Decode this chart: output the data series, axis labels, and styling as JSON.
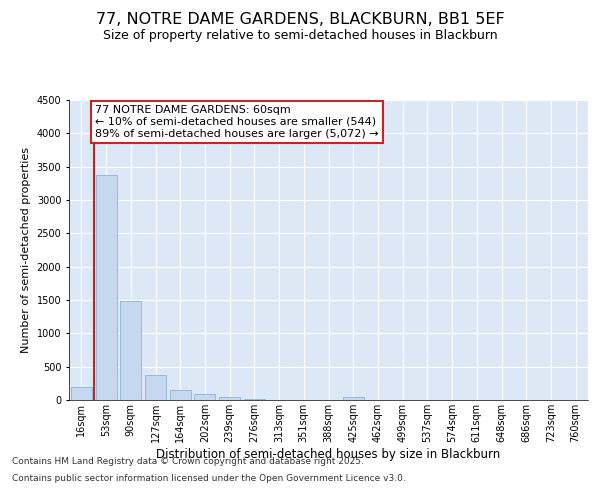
{
  "title_line1": "77, NOTRE DAME GARDENS, BLACKBURN, BB1 5EF",
  "title_line2": "Size of property relative to semi-detached houses in Blackburn",
  "xlabel": "Distribution of semi-detached houses by size in Blackburn",
  "ylabel": "Number of semi-detached properties",
  "categories": [
    "16sqm",
    "53sqm",
    "90sqm",
    "127sqm",
    "164sqm",
    "202sqm",
    "239sqm",
    "276sqm",
    "313sqm",
    "351sqm",
    "388sqm",
    "425sqm",
    "462sqm",
    "499sqm",
    "537sqm",
    "574sqm",
    "611sqm",
    "648sqm",
    "686sqm",
    "723sqm",
    "760sqm"
  ],
  "values": [
    200,
    3380,
    1490,
    375,
    155,
    90,
    50,
    10,
    3,
    0,
    0,
    50,
    0,
    0,
    0,
    0,
    0,
    0,
    0,
    0,
    0
  ],
  "bar_color": "#c5d8f0",
  "bar_edge_color": "#8ab4d8",
  "vline_color": "#cc2222",
  "vline_x": 0.5,
  "annotation_text": "77 NOTRE DAME GARDENS: 60sqm\n← 10% of semi-detached houses are smaller (544)\n89% of semi-detached houses are larger (5,072) →",
  "annotation_box_edgecolor": "#cc2222",
  "ylim": [
    0,
    4500
  ],
  "yticks": [
    0,
    500,
    1000,
    1500,
    2000,
    2500,
    3000,
    3500,
    4000,
    4500
  ],
  "grid_color": "#ffffff",
  "bg_color": "#dce8f5",
  "footer_line1": "Contains HM Land Registry data © Crown copyright and database right 2025.",
  "footer_line2": "Contains public sector information licensed under the Open Government Licence v3.0.",
  "title_fontsize": 11.5,
  "subtitle_fontsize": 9,
  "xlabel_fontsize": 8.5,
  "ylabel_fontsize": 8,
  "tick_fontsize": 7,
  "footer_fontsize": 6.5,
  "annot_fontsize": 8
}
